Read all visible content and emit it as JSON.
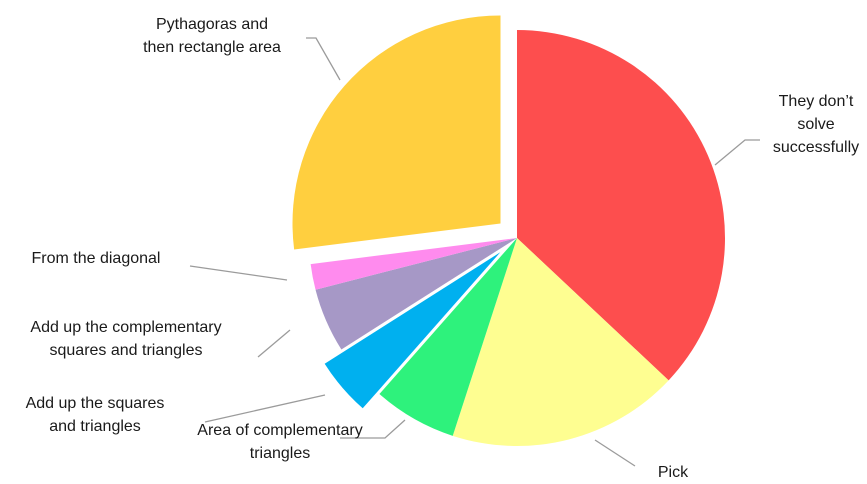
{
  "chart_data": {
    "type": "pie",
    "title": "",
    "legend": "none",
    "slices": [
      {
        "label": "They don’t solve successfully",
        "label_lines": [
          "They don’t",
          "solve",
          "successfully"
        ],
        "value": 37,
        "color": "#fd4e4e",
        "exploded": false
      },
      {
        "label": "Pick",
        "label_lines": [
          "Pick"
        ],
        "value": 18,
        "color": "#fefe91",
        "exploded": false
      },
      {
        "label": "Area of complementary triangles",
        "label_lines": [
          "Area of complementary",
          "triangles"
        ],
        "value": 6.5,
        "color": "#2ef27c",
        "exploded": false
      },
      {
        "label": "Add up the squares and triangles",
        "label_lines": [
          "Add up the squares",
          "and triangles"
        ],
        "value": 4.5,
        "color": "#00b0ef",
        "exploded": true
      },
      {
        "label": "Add up the complementary squares and triangles",
        "label_lines": [
          "Add up the complementary",
          "squares and triangles"
        ],
        "value": 5,
        "color": "#a698c6",
        "exploded": false
      },
      {
        "label": "From the diagonal",
        "label_lines": [
          "From the diagonal"
        ],
        "value": 2,
        "color": "#ff8bee",
        "exploded": false
      },
      {
        "label": "Pythagoras and then rectangle area",
        "label_lines": [
          "Pythagoras and",
          "then rectangle area"
        ],
        "value": 27,
        "color": "#ffcf3f",
        "exploded": true
      }
    ]
  }
}
